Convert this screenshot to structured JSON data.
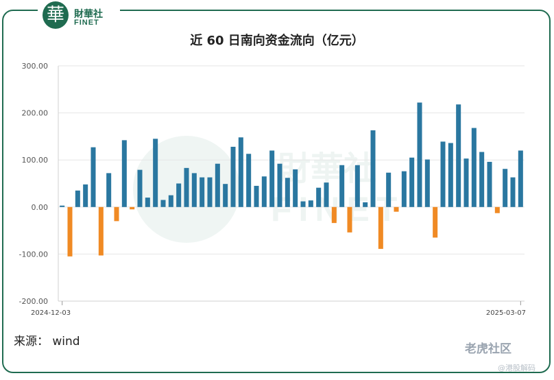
{
  "logo": {
    "cn": "財華社",
    "en": "FINET",
    "seal_char": "華"
  },
  "title": "近 60 日南向资金流向（亿元）",
  "source": "来源： wind",
  "watermark": {
    "main": "老虎社区",
    "sub": "@港股解码"
  },
  "colors": {
    "positive": "#2a77a0",
    "negative": "#f08a24",
    "grid": "#e6e6e6",
    "brand": "#1f6b50"
  },
  "chart_data": {
    "type": "bar",
    "x_start_label": "2024-12-03",
    "x_end_label": "2025-03-07",
    "ylim": [
      -200,
      300
    ],
    "yticks": [
      "-200.00",
      "-100.00",
      "0.00",
      "100.00",
      "200.00",
      "300.00"
    ],
    "values": [
      3,
      -105,
      35,
      48,
      127,
      -103,
      72,
      -30,
      142,
      -5,
      79,
      20,
      145,
      15,
      25,
      50,
      83,
      72,
      63,
      63,
      92,
      49,
      128,
      148,
      113,
      45,
      65,
      120,
      92,
      62,
      80,
      12,
      14,
      41,
      52,
      -34,
      89,
      -54,
      89,
      10,
      163,
      -89,
      73,
      -10,
      76,
      105,
      222,
      101,
      -65,
      139,
      136,
      218,
      103,
      168,
      117,
      96,
      -13,
      81,
      63,
      120
    ]
  }
}
